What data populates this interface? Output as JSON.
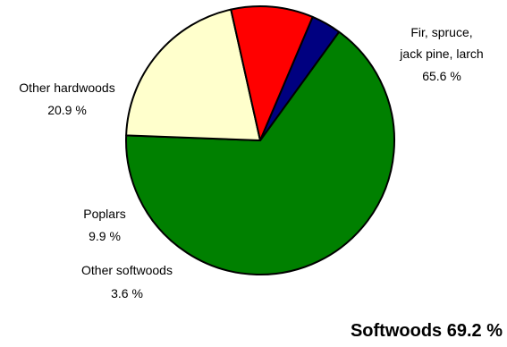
{
  "chart_data": {
    "type": "pie",
    "title": "",
    "slices": [
      {
        "key": "fir",
        "label_lines": [
          "Fir, spruce,",
          "jack pine, larch"
        ],
        "value_text": "65.6 %",
        "value": 65.6,
        "color": "#008000"
      },
      {
        "key": "other_hardwoods",
        "label_lines": [
          "Other hardwoods"
        ],
        "value_text": "20.9 %",
        "value": 20.9,
        "color": "#FFFFCC"
      },
      {
        "key": "poplars",
        "label_lines": [
          "Poplars"
        ],
        "value_text": "9.9 %",
        "value": 9.9,
        "color": "#FF0000"
      },
      {
        "key": "other_softwoods",
        "label_lines": [
          "Other softwoods"
        ],
        "value_text": "3.6 %",
        "value": 3.6,
        "color": "#000080"
      }
    ],
    "annotation": "Softwoods 69.2 %"
  }
}
